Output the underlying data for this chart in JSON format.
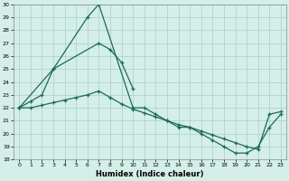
{
  "xlabel": "Humidex (Indice chaleur)",
  "s1_x": [
    0,
    1,
    2,
    3,
    6,
    7,
    10,
    11,
    12,
    13,
    14,
    15,
    16,
    17,
    18,
    19,
    20,
    21,
    22,
    23
  ],
  "s1_y": [
    22,
    22.5,
    23,
    25,
    29,
    30,
    22,
    22,
    21.5,
    21.0,
    20.5,
    20.5,
    20.0,
    19.5,
    19.0,
    18.5,
    18.5,
    19.0,
    20.5,
    21.5
  ],
  "s2_x": [
    0,
    3,
    7,
    8,
    9,
    10
  ],
  "s2_y": [
    22,
    25,
    27,
    26.5,
    25.5,
    23.5
  ],
  "s3_x": [
    0,
    1,
    2,
    3,
    4,
    5,
    6,
    7,
    8,
    9,
    10,
    11,
    12,
    13,
    14,
    15,
    16,
    17,
    18,
    19,
    20,
    21,
    22,
    23
  ],
  "s3_y": [
    22.0,
    22.0,
    22.2,
    22.4,
    22.6,
    22.8,
    23.0,
    23.3,
    22.8,
    22.3,
    21.9,
    21.6,
    21.3,
    21.0,
    20.7,
    20.5,
    20.2,
    19.9,
    19.6,
    19.3,
    19.0,
    18.8,
    21.5,
    21.7
  ],
  "ylim": [
    18,
    30
  ],
  "xlim": [
    -0.5,
    23.5
  ],
  "yticks": [
    18,
    19,
    20,
    21,
    22,
    23,
    24,
    25,
    26,
    27,
    28,
    29,
    30
  ],
  "xticks": [
    0,
    1,
    2,
    3,
    4,
    5,
    6,
    7,
    8,
    9,
    10,
    11,
    12,
    13,
    14,
    15,
    16,
    17,
    18,
    19,
    20,
    21,
    22,
    23
  ],
  "line_color": "#1a6b5a",
  "bg_color": "#d4eee8",
  "grid_color": "#aacfc8"
}
